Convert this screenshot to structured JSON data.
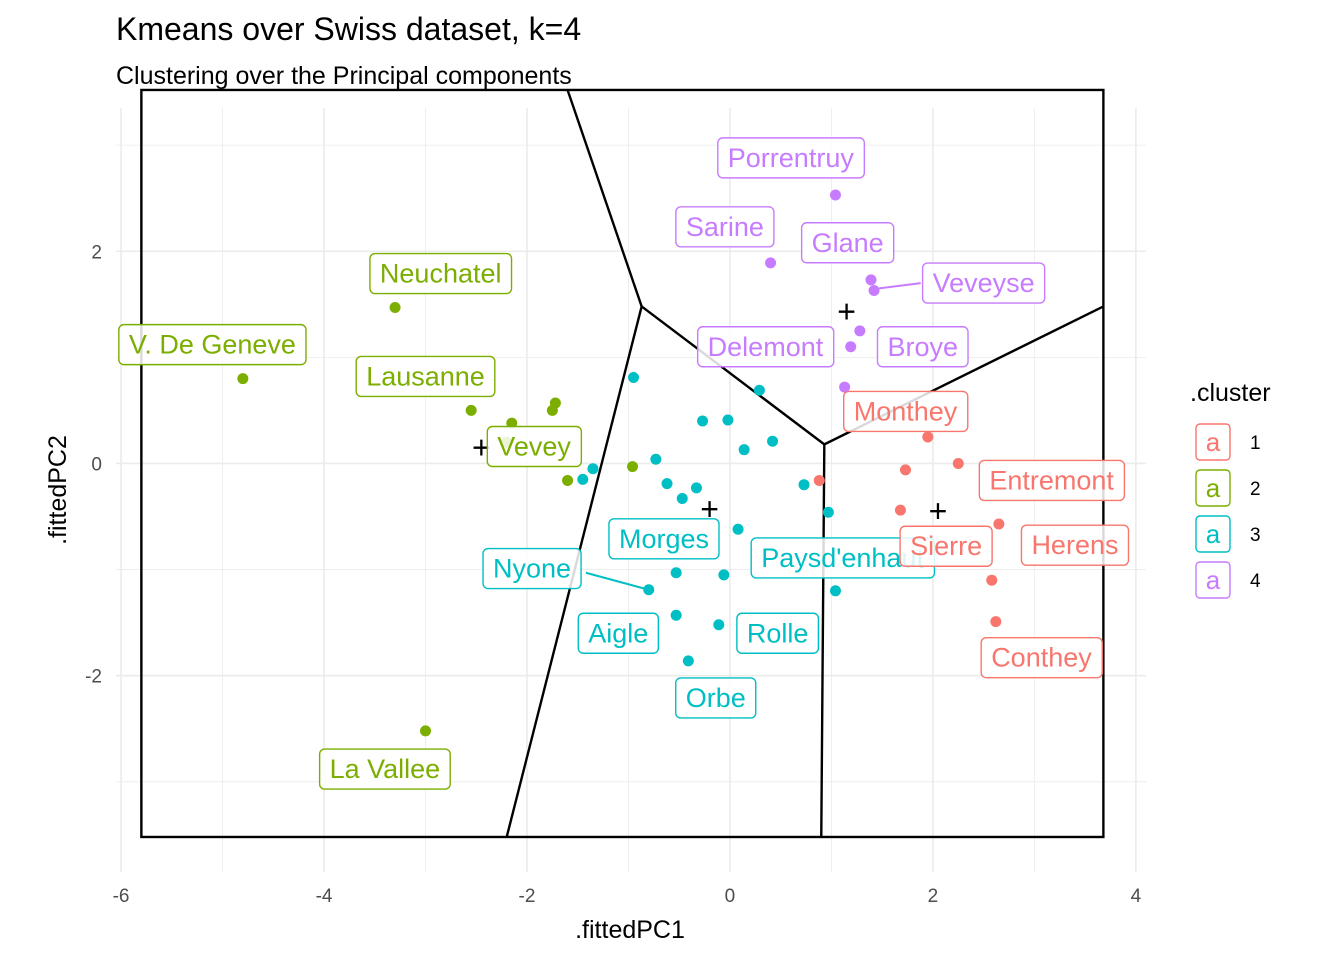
{
  "chart_data": {
    "type": "scatter",
    "title": "Kmeans over Swiss dataset, k=4",
    "subtitle": "Clustering over the Principal components",
    "xlabel": ".fittedPC1",
    "ylabel": ".fittedPC2",
    "xlim": [
      -6.05,
      4.1
    ],
    "ylim": [
      -3.85,
      3.35
    ],
    "xticks": [
      -6,
      -4,
      -2,
      0,
      2,
      4
    ],
    "yticks": [
      -2,
      0,
      2
    ],
    "grid": true,
    "legend": {
      "title": ".cluster",
      "position": "right",
      "entries": [
        {
          "key": "a",
          "label": "1",
          "color": "#F8766D"
        },
        {
          "key": "a",
          "label": "2",
          "color": "#7CAE00"
        },
        {
          "key": "a",
          "label": "3",
          "color": "#00BFC4"
        },
        {
          "key": "a",
          "label": "4",
          "color": "#C77CFF"
        }
      ]
    },
    "centroid_marker": "+",
    "centroids": [
      {
        "cluster": "1",
        "x": 2.05,
        "y": -0.45
      },
      {
        "cluster": "2",
        "x": -2.45,
        "y": 0.15
      },
      {
        "cluster": "3",
        "x": -0.2,
        "y": -0.43
      },
      {
        "cluster": "4",
        "x": 1.15,
        "y": 1.43
      }
    ],
    "voronoi_box": {
      "x": [
        -5.8,
        3.68
      ],
      "y": [
        -3.52,
        3.52
      ]
    },
    "voronoi_edges": [
      [
        [
          -1.6,
          3.52
        ],
        [
          -0.87,
          1.48
        ]
      ],
      [
        [
          -0.87,
          1.48
        ],
        [
          -2.2,
          -3.52
        ]
      ],
      [
        [
          -0.87,
          1.48
        ],
        [
          0.93,
          0.18
        ]
      ],
      [
        [
          0.93,
          0.18
        ],
        [
          3.68,
          1.48
        ]
      ],
      [
        [
          0.93,
          0.18
        ],
        [
          0.9,
          -3.52
        ]
      ]
    ],
    "points": [
      {
        "x": -4.8,
        "y": 0.8,
        "cluster": "2",
        "label": "V. De Geneve"
      },
      {
        "x": -3.3,
        "y": 1.47,
        "cluster": "2",
        "label": "Neuchatel"
      },
      {
        "x": -2.55,
        "y": 0.5,
        "cluster": "2",
        "label": "Lausanne"
      },
      {
        "x": -2.15,
        "y": 0.38,
        "cluster": "2"
      },
      {
        "x": -1.75,
        "y": 0.5,
        "cluster": "2"
      },
      {
        "x": -1.72,
        "y": 0.57,
        "cluster": "2"
      },
      {
        "x": -2.2,
        "y": 0.2,
        "cluster": "2",
        "label": "Vevey"
      },
      {
        "x": -1.6,
        "y": -0.16,
        "cluster": "2"
      },
      {
        "x": -0.96,
        "y": -0.03,
        "cluster": "2"
      },
      {
        "x": -3.0,
        "y": -2.52,
        "cluster": "2",
        "label": "La Vallee"
      },
      {
        "x": -0.95,
        "y": 0.81,
        "cluster": "3"
      },
      {
        "x": -1.35,
        "y": -0.05,
        "cluster": "3"
      },
      {
        "x": -1.45,
        "y": -0.15,
        "cluster": "3"
      },
      {
        "x": -0.73,
        "y": 0.04,
        "cluster": "3"
      },
      {
        "x": -0.62,
        "y": -0.19,
        "cluster": "3"
      },
      {
        "x": -0.47,
        "y": -0.33,
        "cluster": "3"
      },
      {
        "x": -0.33,
        "y": -0.23,
        "cluster": "3",
        "label": "Morges"
      },
      {
        "x": -0.27,
        "y": 0.4,
        "cluster": "3"
      },
      {
        "x": -0.02,
        "y": 0.41,
        "cluster": "3"
      },
      {
        "x": 0.14,
        "y": 0.13,
        "cluster": "3"
      },
      {
        "x": 0.29,
        "y": 0.69,
        "cluster": "3"
      },
      {
        "x": 0.42,
        "y": 0.21,
        "cluster": "3"
      },
      {
        "x": 0.73,
        "y": -0.2,
        "cluster": "3"
      },
      {
        "x": 0.97,
        "y": -0.46,
        "cluster": "3"
      },
      {
        "x": 0.08,
        "y": -0.62,
        "cluster": "3",
        "label": "Paysd'enhaut"
      },
      {
        "x": -0.8,
        "y": -1.19,
        "cluster": "3",
        "label": "Nyone"
      },
      {
        "x": -0.53,
        "y": -1.03,
        "cluster": "3"
      },
      {
        "x": -0.06,
        "y": -1.05,
        "cluster": "3"
      },
      {
        "x": -0.53,
        "y": -1.43,
        "cluster": "3",
        "label": "Aigle"
      },
      {
        "x": -0.11,
        "y": -1.52,
        "cluster": "3",
        "label": "Rolle"
      },
      {
        "x": -0.41,
        "y": -1.86,
        "cluster": "3",
        "label": "Orbe"
      },
      {
        "x": 1.04,
        "y": -1.2,
        "cluster": "3"
      },
      {
        "x": 0.4,
        "y": 1.89,
        "cluster": "4",
        "label": "Sarine"
      },
      {
        "x": 1.04,
        "y": 2.53,
        "cluster": "4",
        "label": "Porrentruy"
      },
      {
        "x": 1.39,
        "y": 1.73,
        "cluster": "4",
        "label": "Glane"
      },
      {
        "x": 1.42,
        "y": 1.63,
        "cluster": "4",
        "label": "Veveyse"
      },
      {
        "x": 1.28,
        "y": 1.25,
        "cluster": "4"
      },
      {
        "x": 1.19,
        "y": 1.1,
        "cluster": "4",
        "label": "Broye"
      },
      {
        "x": 1.13,
        "y": 0.72,
        "cluster": "4",
        "label": "Delemont"
      },
      {
        "x": 0.88,
        "y": -0.16,
        "cluster": "1"
      },
      {
        "x": 1.95,
        "y": 0.25,
        "cluster": "1",
        "label": "Monthey"
      },
      {
        "x": 1.73,
        "y": -0.06,
        "cluster": "1"
      },
      {
        "x": 2.25,
        "y": 0.0,
        "cluster": "1",
        "label": "Entremont"
      },
      {
        "x": 1.68,
        "y": -0.44,
        "cluster": "1",
        "label": "Sierre"
      },
      {
        "x": 2.65,
        "y": -0.57,
        "cluster": "1",
        "label": "Herens"
      },
      {
        "x": 2.58,
        "y": -1.1,
        "cluster": "1"
      },
      {
        "x": 2.62,
        "y": -1.49,
        "cluster": "1",
        "label": "Conthey"
      }
    ],
    "labels": [
      {
        "text": "V. De Geneve",
        "cluster": "2",
        "x": -5.1,
        "y": 1.12
      },
      {
        "text": "Neuchatel",
        "cluster": "2",
        "x": -2.85,
        "y": 1.79
      },
      {
        "text": "Lausanne",
        "cluster": "2",
        "x": -3.0,
        "y": 0.82
      },
      {
        "text": "Vevey",
        "cluster": "2",
        "x": -1.93,
        "y": 0.16
      },
      {
        "text": "La Vallee",
        "cluster": "2",
        "x": -3.4,
        "y": -2.88
      },
      {
        "text": "Morges",
        "cluster": "3",
        "x": -0.65,
        "y": -0.71
      },
      {
        "text": "Nyone",
        "cluster": "3",
        "x": -1.95,
        "y": -0.99
      },
      {
        "text": "Aigle",
        "cluster": "3",
        "x": -1.1,
        "y": -1.6
      },
      {
        "text": "Rolle",
        "cluster": "3",
        "x": 0.47,
        "y": -1.6
      },
      {
        "text": "Orbe",
        "cluster": "3",
        "x": -0.14,
        "y": -2.21
      },
      {
        "text": "Paysd'enhaut",
        "cluster": "3",
        "x": 1.11,
        "y": -0.89
      },
      {
        "text": "Porrentruy",
        "cluster": "4",
        "x": 0.6,
        "y": 2.88
      },
      {
        "text": "Sarine",
        "cluster": "4",
        "x": -0.05,
        "y": 2.23
      },
      {
        "text": "Glane",
        "cluster": "4",
        "x": 1.16,
        "y": 2.08
      },
      {
        "text": "Veveyse",
        "cluster": "4",
        "x": 2.5,
        "y": 1.7
      },
      {
        "text": "Delemont",
        "cluster": "4",
        "x": 0.35,
        "y": 1.1
      },
      {
        "text": "Broye",
        "cluster": "4",
        "x": 1.9,
        "y": 1.1
      },
      {
        "text": "Monthey",
        "cluster": "1",
        "x": 1.73,
        "y": 0.49
      },
      {
        "text": "Entremont",
        "cluster": "1",
        "x": 3.17,
        "y": -0.16
      },
      {
        "text": "Sierre",
        "cluster": "1",
        "x": 2.13,
        "y": -0.78
      },
      {
        "text": "Herens",
        "cluster": "1",
        "x": 3.4,
        "y": -0.77
      },
      {
        "text": "Conthey",
        "cluster": "1",
        "x": 3.07,
        "y": -1.83
      }
    ],
    "connectors": [
      {
        "label": "Nyone",
        "from": [
          -1.42,
          -1.03
        ],
        "to": [
          -0.8,
          -1.19
        ]
      },
      {
        "label": "Veveyse",
        "from": [
          1.47,
          1.65
        ],
        "to": [
          1.88,
          1.7
        ]
      }
    ]
  }
}
